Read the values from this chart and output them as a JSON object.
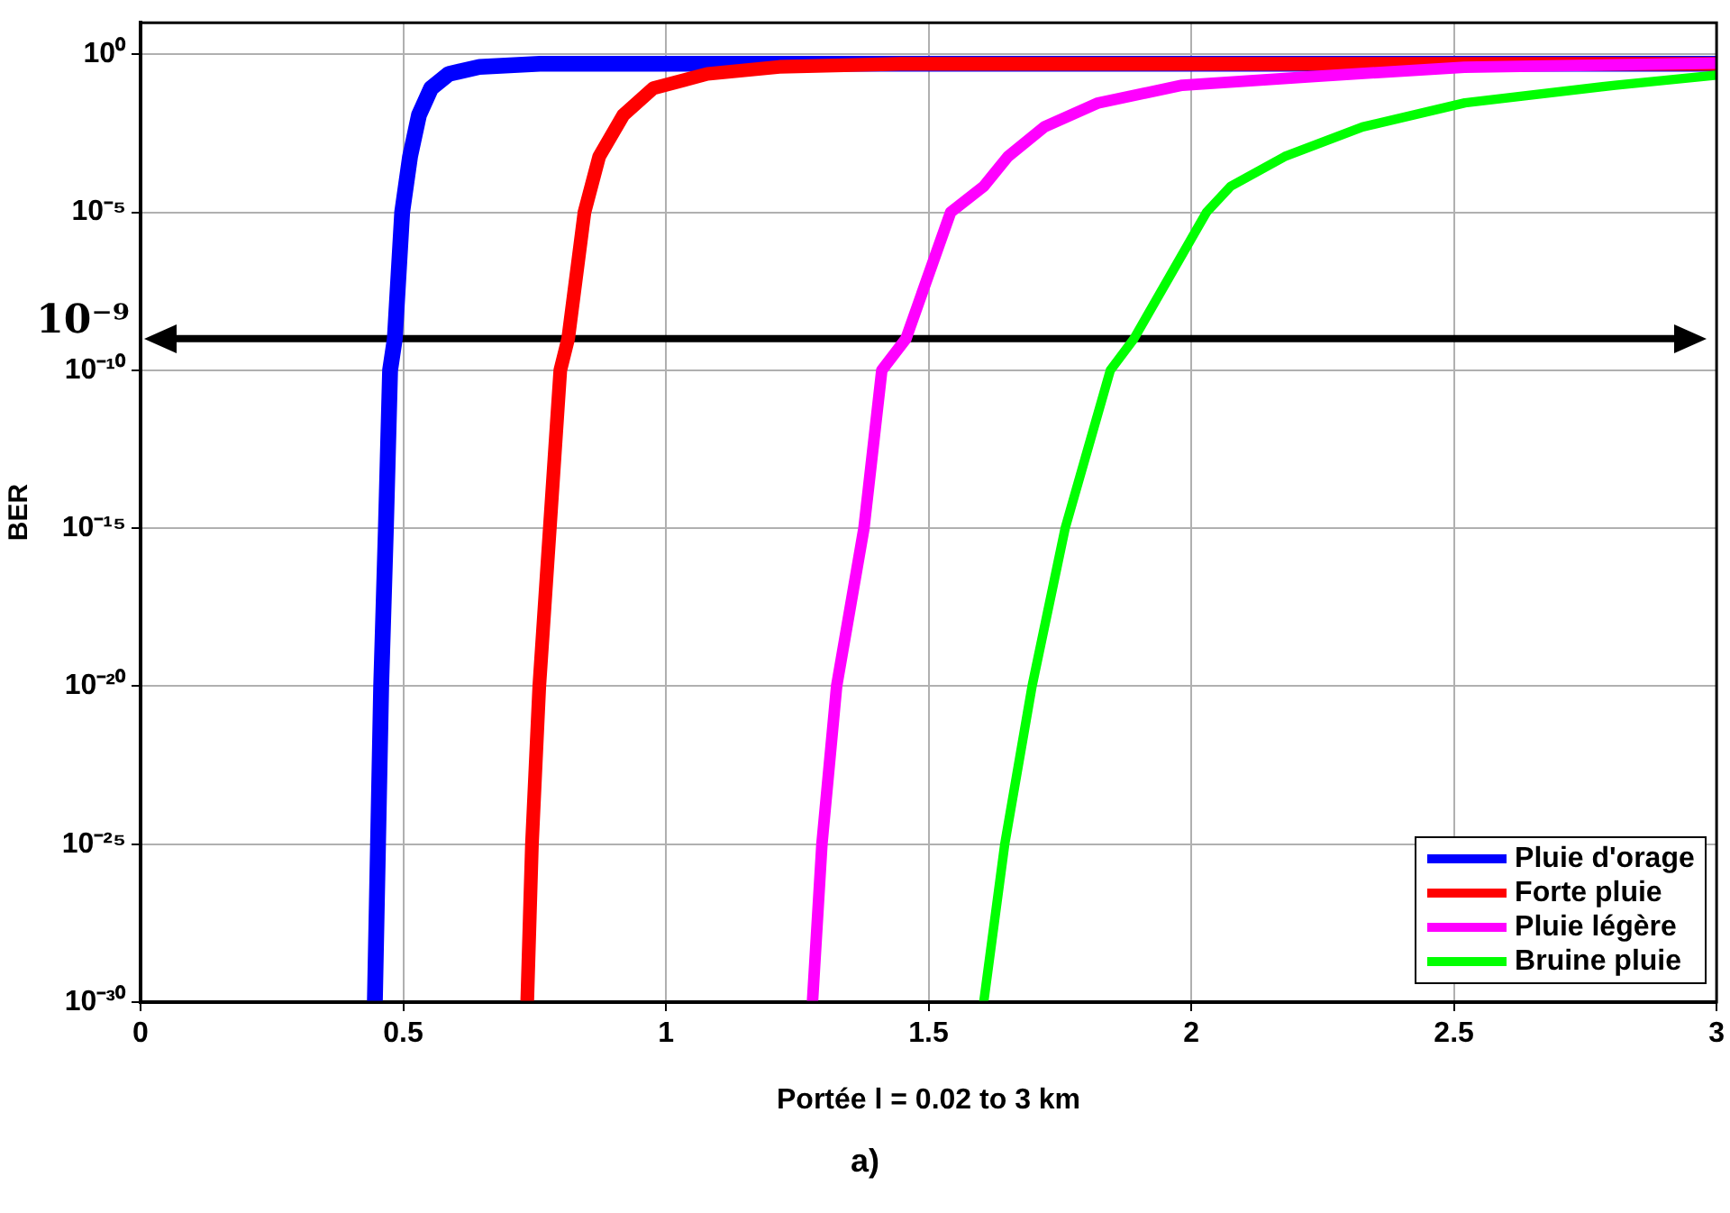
{
  "chart_data": {
    "type": "line",
    "xlabel": "Portée l = 0.02 to 3 km",
    "ylabel": "BER",
    "log": "y",
    "grid": true,
    "legend": "bottom right",
    "xlim": [
      0,
      3
    ],
    "xticks": [
      0,
      0.5,
      1,
      1.5,
      2,
      2.5,
      3
    ],
    "ylim": [
      1e-30,
      10
    ],
    "yticks": [
      {
        "value": 1e-30,
        "label": "10⁻³⁰"
      },
      {
        "value": 1e-25,
        "label": "10⁻²⁵"
      },
      {
        "value": 1e-20,
        "label": "10⁻²⁰"
      },
      {
        "value": 1e-15,
        "label": "10⁻¹⁵"
      },
      {
        "value": 1e-10,
        "label": "10⁻¹⁰"
      },
      {
        "value": 1e-05,
        "label": "10⁻⁵"
      },
      {
        "value": 1,
        "label": "10⁰"
      }
    ],
    "ref_lines": [
      {
        "axis": "y",
        "value": 1e-09,
        "label": "10⁻⁹",
        "color": "#000000"
      }
    ],
    "annotations": [
      "a)"
    ],
    "series": [
      {
        "name": "Pluie d'orage",
        "color": "#0000ff",
        "x": [
          0.446,
          0.452,
          0.458,
          0.467,
          0.475,
          0.484,
          0.498,
          0.513,
          0.53,
          0.553,
          0.587,
          0.645,
          0.76,
          3
        ],
        "values": [
          1e-30,
          1e-25,
          1e-20,
          1e-15,
          1e-10,
          1e-09,
          1e-05,
          0.00058,
          0.012,
          0.085,
          0.24,
          0.4,
          0.5,
          0.5
        ]
      },
      {
        "name": "Forte pluie",
        "color": "#ff0000",
        "x": [
          0.736,
          0.745,
          0.759,
          0.779,
          0.799,
          0.814,
          0.845,
          0.873,
          0.919,
          0.976,
          1.079,
          1.216,
          1.445,
          3
        ],
        "values": [
          1e-30,
          1e-25,
          1e-20,
          1e-15,
          1e-10,
          1e-09,
          1e-05,
          0.00058,
          0.012,
          0.085,
          0.24,
          0.4,
          0.5,
          0.5
        ]
      },
      {
        "name": "Pluie légère",
        "color": "#ff00ff",
        "x": [
          1.279,
          1.297,
          1.325,
          1.377,
          1.411,
          1.457,
          1.542,
          1.605,
          1.651,
          1.72,
          1.823,
          1.983,
          2.235,
          2.52,
          3
        ],
        "values": [
          1e-30,
          1e-25,
          1e-20,
          1e-15,
          1e-10,
          1e-09,
          1e-05,
          6.6e-05,
          0.00058,
          0.005,
          0.029,
          0.105,
          0.2,
          0.39,
          0.52
        ]
      },
      {
        "name": "Bruine pluie",
        "color": "#00ff00",
        "x": [
          1.605,
          1.645,
          1.697,
          1.76,
          1.846,
          1.891,
          2.029,
          2.075,
          2.178,
          2.326,
          2.521,
          2.807,
          3
        ],
        "values": [
          1e-30,
          1e-25,
          1e-20,
          1e-15,
          1e-10,
          1e-09,
          1e-05,
          6.6e-05,
          0.00058,
          0.005,
          0.029,
          0.105,
          0.22
        ]
      }
    ]
  }
}
